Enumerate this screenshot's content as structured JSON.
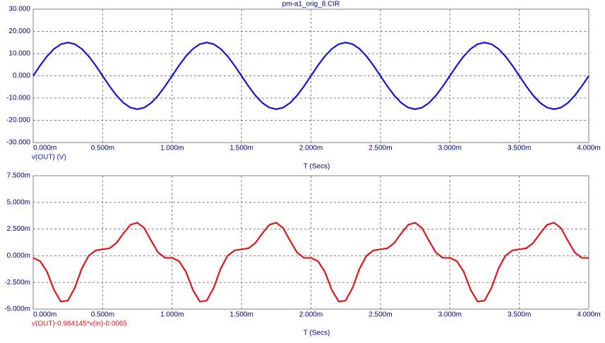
{
  "chart_data": [
    {
      "type": "line",
      "title": "pm-a1_orig_8.CIR",
      "x_label": "T (Secs)",
      "grid": true,
      "x": [
        0,
        5e-05,
        0.0001,
        0.00015,
        0.0002,
        0.00025,
        0.0003,
        0.00035,
        0.0004,
        0.00045,
        0.0005,
        0.00055,
        0.0006,
        0.00065,
        0.0007,
        0.00075,
        0.0008,
        0.00085,
        0.0009,
        0.00095,
        0.001,
        0.00105,
        0.0011,
        0.00115,
        0.0012,
        0.00125,
        0.0013,
        0.00135,
        0.0014,
        0.00145,
        0.0015,
        0.00155,
        0.0016,
        0.00165,
        0.0017,
        0.00175,
        0.0018,
        0.00185,
        0.0019,
        0.00195,
        0.002,
        0.00205,
        0.0021,
        0.00215,
        0.0022,
        0.00225,
        0.0023,
        0.00235,
        0.0024,
        0.00245,
        0.0025,
        0.00255,
        0.0026,
        0.00265,
        0.0027,
        0.00275,
        0.0028,
        0.00285,
        0.0029,
        0.00295,
        0.003,
        0.00305,
        0.0031,
        0.00315,
        0.0032,
        0.00325,
        0.0033,
        0.00335,
        0.0034,
        0.00345,
        0.0035,
        0.00355,
        0.0036,
        0.00365,
        0.0037,
        0.00375,
        0.0038,
        0.00385,
        0.0039,
        0.00395,
        0.004
      ],
      "series": [
        {
          "name": "v(OUT) (V)",
          "color": "#1414d8",
          "values": [
            0,
            4.64,
            8.82,
            12.14,
            14.27,
            15,
            14.27,
            12.14,
            8.82,
            4.64,
            0,
            -4.64,
            -8.82,
            -12.14,
            -14.27,
            -15,
            -14.27,
            -12.14,
            -8.82,
            -4.64,
            0,
            4.64,
            8.82,
            12.14,
            14.27,
            15,
            14.27,
            12.14,
            8.82,
            4.64,
            0,
            -4.64,
            -8.82,
            -12.14,
            -14.27,
            -15,
            -14.27,
            -12.14,
            -8.82,
            -4.64,
            0,
            4.64,
            8.82,
            12.14,
            14.27,
            15,
            14.27,
            12.14,
            8.82,
            4.64,
            0,
            -4.64,
            -8.82,
            -12.14,
            -14.27,
            -15,
            -14.27,
            -12.14,
            -8.82,
            -4.64,
            0,
            4.64,
            8.82,
            12.14,
            14.27,
            15,
            14.27,
            12.14,
            8.82,
            4.64,
            0,
            -4.64,
            -8.82,
            -12.14,
            -14.27,
            -15,
            -14.27,
            -12.14,
            -8.82,
            -4.64,
            0
          ]
        }
      ],
      "xlim": [
        0,
        0.004
      ],
      "xticks": [
        {
          "value": 0,
          "label": "0.000m"
        },
        {
          "value": 0.0005,
          "label": "0.500m"
        },
        {
          "value": 0.001,
          "label": "1.000m"
        },
        {
          "value": 0.0015,
          "label": "1.500m"
        },
        {
          "value": 0.002,
          "label": "2.000m"
        },
        {
          "value": 0.0025,
          "label": "2.500m"
        },
        {
          "value": 0.003,
          "label": "3.000m"
        },
        {
          "value": 0.0035,
          "label": "3.500m"
        },
        {
          "value": 0.004,
          "label": "4.000m"
        }
      ],
      "ylim": [
        -30,
        30
      ],
      "yticks": [
        {
          "value": 30,
          "label": "30.000"
        },
        {
          "value": 20,
          "label": "20.000"
        },
        {
          "value": 10,
          "label": "10.000"
        },
        {
          "value": 0,
          "label": "0.000"
        },
        {
          "value": -10,
          "label": "-10.000"
        },
        {
          "value": -20,
          "label": "-20.000"
        },
        {
          "value": -30,
          "label": "-30.000"
        }
      ]
    },
    {
      "type": "line",
      "x_label": "T (Secs)",
      "grid": true,
      "x": [
        0,
        5e-05,
        0.0001,
        0.00015,
        0.0002,
        0.00025,
        0.0003,
        0.00035,
        0.0004,
        0.00045,
        0.0005,
        0.00055,
        0.0006,
        0.00065,
        0.0007,
        0.00075,
        0.0008,
        0.00085,
        0.0009,
        0.00095,
        0.001,
        0.00105,
        0.0011,
        0.00115,
        0.0012,
        0.00125,
        0.0013,
        0.00135,
        0.0014,
        0.00145,
        0.0015,
        0.00155,
        0.0016,
        0.00165,
        0.0017,
        0.00175,
        0.0018,
        0.00185,
        0.0019,
        0.00195,
        0.002,
        0.00205,
        0.0021,
        0.00215,
        0.0022,
        0.00225,
        0.0023,
        0.00235,
        0.0024,
        0.00245,
        0.0025,
        0.00255,
        0.0026,
        0.00265,
        0.0027,
        0.00275,
        0.0028,
        0.00285,
        0.0029,
        0.00295,
        0.003,
        0.00305,
        0.0031,
        0.00315,
        0.0032,
        0.00325,
        0.0033,
        0.00335,
        0.0034,
        0.00345,
        0.0035,
        0.00355,
        0.0036,
        0.00365,
        0.0037,
        0.00375,
        0.0038,
        0.00385,
        0.0039,
        0.00395,
        0.004
      ],
      "series": [
        {
          "name": "v(OUT)-0.984145*v(in)-0.0065",
          "color": "#e01414",
          "values": [
            -0.0002,
            -0.0005,
            -0.0015,
            -0.0032,
            -0.0043,
            -0.0042,
            -0.003,
            -0.0012,
            0,
            0.0005,
            0.0006,
            0.0007,
            0.0012,
            0.0021,
            0.0029,
            0.0031,
            0.0026,
            0.0014,
            0.0003,
            -0.0002,
            -0.0002,
            -0.0005,
            -0.0015,
            -0.0032,
            -0.0043,
            -0.0042,
            -0.003,
            -0.0012,
            0,
            0.0005,
            0.0006,
            0.0007,
            0.0012,
            0.0021,
            0.0029,
            0.0031,
            0.0026,
            0.0014,
            0.0003,
            -0.0002,
            -0.0002,
            -0.0005,
            -0.0015,
            -0.0032,
            -0.0043,
            -0.0042,
            -0.003,
            -0.0012,
            0,
            0.0005,
            0.0006,
            0.0007,
            0.0012,
            0.0021,
            0.0029,
            0.0031,
            0.0026,
            0.0014,
            0.0003,
            -0.0002,
            -0.0002,
            -0.0005,
            -0.0015,
            -0.0032,
            -0.0043,
            -0.0042,
            -0.003,
            -0.0012,
            0,
            0.0005,
            0.0006,
            0.0007,
            0.0012,
            0.0021,
            0.0029,
            0.0031,
            0.0026,
            0.0014,
            0.0003,
            -0.0002,
            -0.0002
          ]
        }
      ],
      "xlim": [
        0,
        0.004
      ],
      "xticks": [
        {
          "value": 0,
          "label": "0.000m"
        },
        {
          "value": 0.0005,
          "label": "0.500m"
        },
        {
          "value": 0.001,
          "label": "1.000m"
        },
        {
          "value": 0.0015,
          "label": "1.500m"
        },
        {
          "value": 0.002,
          "label": "2.000m"
        },
        {
          "value": 0.0025,
          "label": "2.500m"
        },
        {
          "value": 0.003,
          "label": "3.000m"
        },
        {
          "value": 0.0035,
          "label": "3.500m"
        },
        {
          "value": 0.004,
          "label": "4.000m"
        }
      ],
      "ylim": [
        -0.005,
        0.0075
      ],
      "yticks": [
        {
          "value": 0.0075,
          "label": "7.500m"
        },
        {
          "value": 0.005,
          "label": "5.000m"
        },
        {
          "value": 0.0025,
          "label": "2.500m"
        },
        {
          "value": 0,
          "label": "0.000m"
        },
        {
          "value": -0.0025,
          "label": "-2.500m"
        },
        {
          "value": -0.005,
          "label": "-5.000m"
        }
      ]
    }
  ]
}
